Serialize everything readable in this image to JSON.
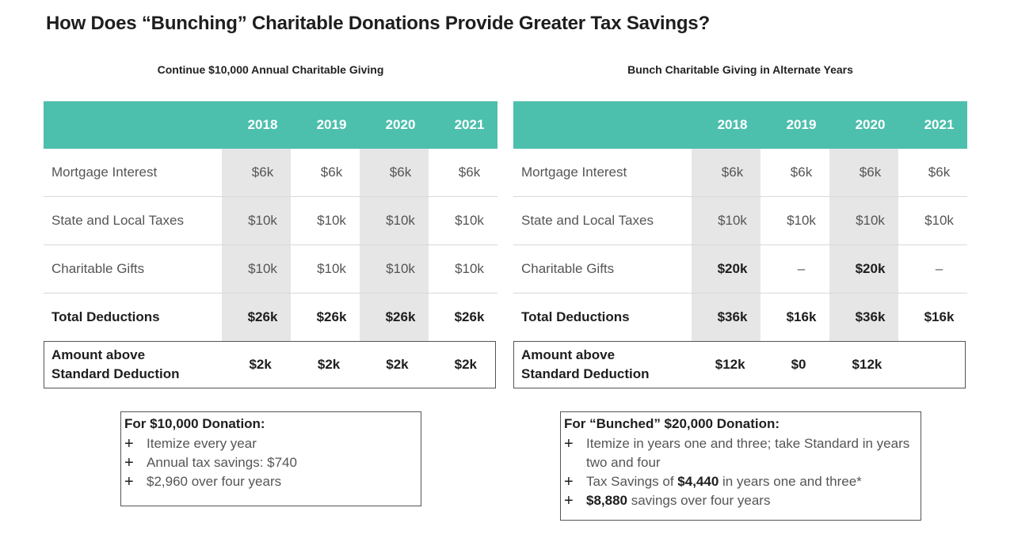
{
  "title": "How Does “Bunching” Charitable Donations Provide Greater Tax Savings?",
  "left": {
    "heading": "Continue $10,000 Annual Charitable Giving",
    "years": [
      "2018",
      "2019",
      "2020",
      "2021"
    ],
    "rows": [
      {
        "label": "Mortgage Interest",
        "values": [
          "$6k",
          "$6k",
          "$6k",
          "$6k"
        ]
      },
      {
        "label": "State and Local Taxes",
        "values": [
          "$10k",
          "$10k",
          "$10k",
          "$10k"
        ]
      },
      {
        "label": "Charitable Gifts",
        "values": [
          "$10k",
          "$10k",
          "$10k",
          "$10k"
        ]
      },
      {
        "label": "Total Deductions",
        "values": [
          "$26k",
          "$26k",
          "$26k",
          "$26k"
        ]
      }
    ],
    "amount": {
      "label_line1": "Amount above",
      "label_line2": "Standard Deduction",
      "values": [
        "$2k",
        "$2k",
        "$2k",
        "$2k"
      ]
    },
    "note": {
      "heading": "For $10,000 Donation:",
      "items": [
        "Itemize every year",
        "Annual tax savings: $740",
        "$2,960 over four years"
      ]
    }
  },
  "right": {
    "heading": "Bunch Charitable Giving in Alternate Years",
    "years": [
      "2018",
      "2019",
      "2020",
      "2021"
    ],
    "rows": [
      {
        "label": "Mortgage Interest",
        "values": [
          "$6k",
          "$6k",
          "$6k",
          "$6k"
        ]
      },
      {
        "label": "State and Local Taxes",
        "values": [
          "$10k",
          "$10k",
          "$10k",
          "$10k"
        ]
      },
      {
        "label": "Charitable Gifts",
        "values": [
          "$20k",
          "–",
          "$20k",
          "–"
        ]
      },
      {
        "label": "Total Deductions",
        "values": [
          "$36k",
          "$16k",
          "$36k",
          "$16k"
        ]
      }
    ],
    "amount": {
      "label_line1": "Amount above",
      "label_line2": "Standard Deduction",
      "values": [
        "$12k",
        "$0",
        "$12k",
        ""
      ]
    },
    "note": {
      "heading": "For “Bunched” $20,000 Donation:",
      "item1": "Itemize in years one and three; take Standard in years two and four",
      "item2_pre": "Tax Savings of ",
      "item2_bold": "$4,440",
      "item2_post": " in years one and three*",
      "item3_bold": "$8,880",
      "item3_post": " savings over four years"
    }
  },
  "colors": {
    "header_teal": "#4dbfad",
    "shade_gray": "#e6e6e6"
  }
}
